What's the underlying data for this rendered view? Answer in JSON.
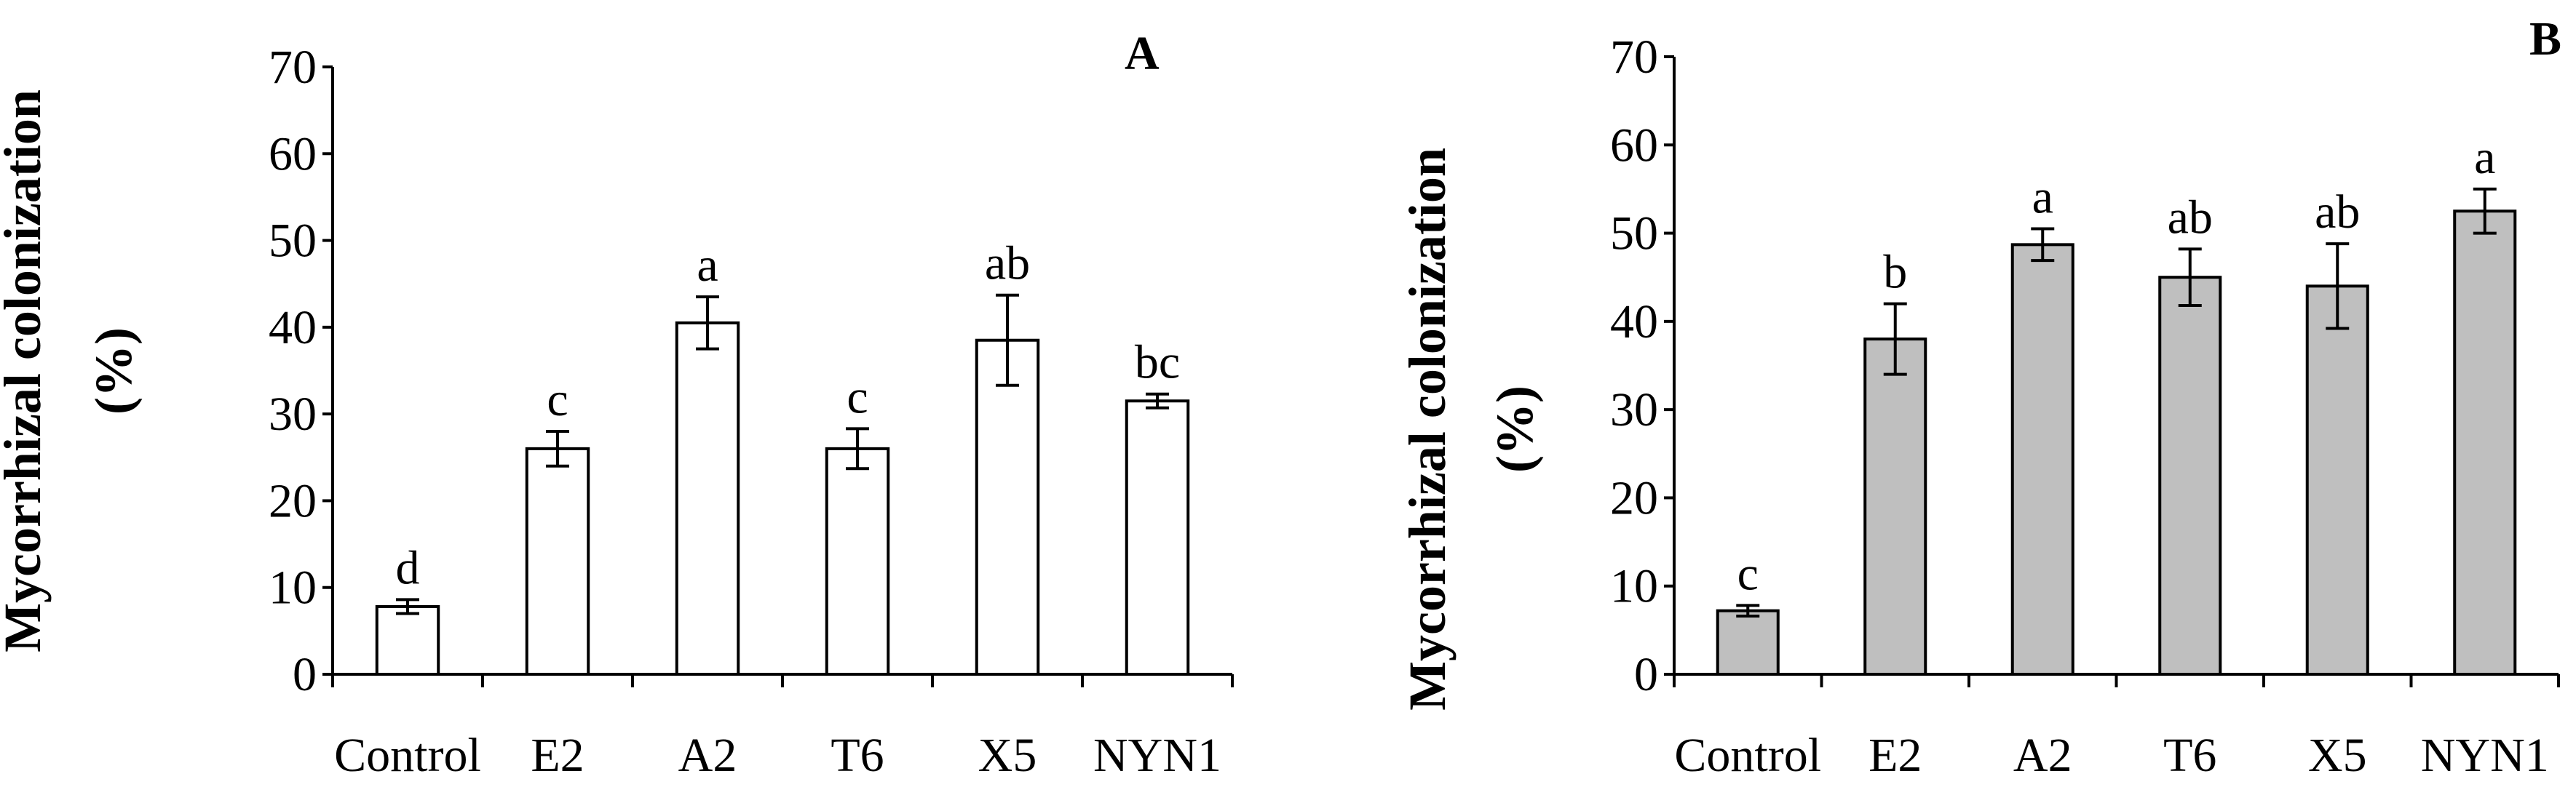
{
  "chart_data": [
    {
      "type": "bar",
      "panel_label": "A",
      "ylabel_line1": "Mycorrhizal colonization",
      "ylabel_line2": "(%)",
      "xlabel": "",
      "ylim": [
        0,
        70
      ],
      "yticks": [
        0,
        10,
        20,
        30,
        40,
        50,
        60,
        70
      ],
      "categories": [
        "Control",
        "E2",
        "A2",
        "T6",
        "X5",
        "NYN1"
      ],
      "values": [
        7.8,
        26.0,
        40.5,
        26.0,
        38.5,
        31.5
      ],
      "errors": [
        0.8,
        2.0,
        3.0,
        2.3,
        5.2,
        0.8
      ],
      "letters": [
        "d",
        "c",
        "a",
        "c",
        "ab",
        "bc"
      ],
      "bar_color": "#ffffff",
      "grid": false
    },
    {
      "type": "bar",
      "panel_label": "B",
      "ylabel_line1": "Mycorrhizal colonization",
      "ylabel_line2": "(%)",
      "xlabel": "",
      "ylim": [
        0,
        70
      ],
      "yticks": [
        0,
        10,
        20,
        30,
        40,
        50,
        60,
        70
      ],
      "categories": [
        "Control",
        "E2",
        "A2",
        "T6",
        "X5",
        "NYN1"
      ],
      "values": [
        7.2,
        38.0,
        48.7,
        45.0,
        44.0,
        52.5
      ],
      "errors": [
        0.6,
        4.0,
        1.8,
        3.2,
        4.8,
        2.5
      ],
      "letters": [
        "c",
        "b",
        "a",
        "ab",
        "ab",
        "a"
      ],
      "bar_color": "#bfbfbf",
      "grid": false
    }
  ]
}
